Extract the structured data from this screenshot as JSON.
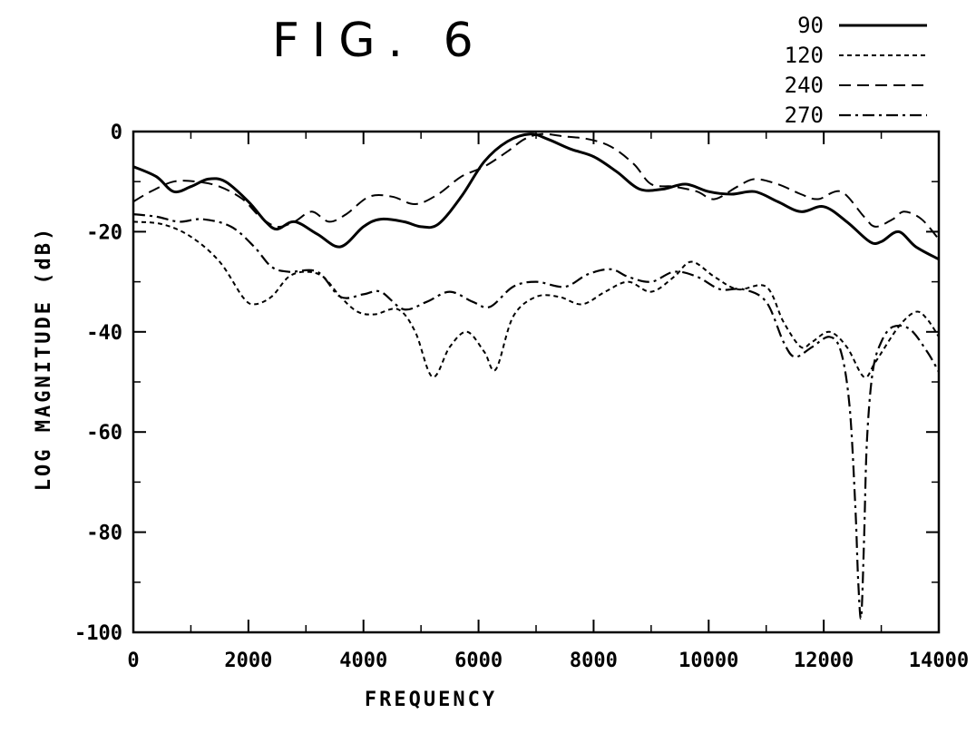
{
  "figure": {
    "title": "FIG. 6"
  },
  "chart_data": {
    "type": "line",
    "title": "FIG. 6",
    "xlabel": "FREQUENCY",
    "ylabel": "LOG MAGNITUDE (dB)",
    "xlim": [
      0,
      14000
    ],
    "ylim": [
      -100,
      0
    ],
    "xticks": [
      0,
      2000,
      4000,
      6000,
      8000,
      10000,
      12000,
      14000
    ],
    "yticks": [
      0,
      -20,
      -40,
      -60,
      -80,
      -100
    ],
    "grid": false,
    "legend_position": "top-right",
    "series": [
      {
        "name": "90",
        "style": "solid",
        "points": [
          [
            0,
            -7
          ],
          [
            400,
            -9
          ],
          [
            700,
            -12
          ],
          [
            1000,
            -11
          ],
          [
            1300,
            -9.5
          ],
          [
            1600,
            -10
          ],
          [
            2000,
            -14
          ],
          [
            2300,
            -18
          ],
          [
            2500,
            -19.5
          ],
          [
            2800,
            -18
          ],
          [
            3200,
            -20.5
          ],
          [
            3600,
            -23
          ],
          [
            4000,
            -19
          ],
          [
            4300,
            -17.5
          ],
          [
            4700,
            -18
          ],
          [
            5000,
            -19
          ],
          [
            5300,
            -18.5
          ],
          [
            5700,
            -13
          ],
          [
            6100,
            -6
          ],
          [
            6500,
            -2
          ],
          [
            6900,
            -0.5
          ],
          [
            7200,
            -1.5
          ],
          [
            7600,
            -3.5
          ],
          [
            8000,
            -5
          ],
          [
            8400,
            -8
          ],
          [
            8800,
            -11.5
          ],
          [
            9200,
            -11.5
          ],
          [
            9600,
            -10.5
          ],
          [
            10000,
            -12
          ],
          [
            10400,
            -12.5
          ],
          [
            10800,
            -12
          ],
          [
            11200,
            -14
          ],
          [
            11600,
            -16
          ],
          [
            12000,
            -15
          ],
          [
            12400,
            -18
          ],
          [
            12800,
            -22
          ],
          [
            13000,
            -22
          ],
          [
            13300,
            -20
          ],
          [
            13600,
            -23
          ],
          [
            14000,
            -25.5
          ]
        ]
      },
      {
        "name": "120",
        "style": "dotted",
        "points": [
          [
            0,
            -18
          ],
          [
            500,
            -18.5
          ],
          [
            1000,
            -21
          ],
          [
            1500,
            -26
          ],
          [
            1900,
            -33
          ],
          [
            2100,
            -34.5
          ],
          [
            2400,
            -33
          ],
          [
            2700,
            -29
          ],
          [
            3000,
            -28
          ],
          [
            3300,
            -29
          ],
          [
            3600,
            -33
          ],
          [
            3900,
            -36
          ],
          [
            4200,
            -36.5
          ],
          [
            4600,
            -35.5
          ],
          [
            4900,
            -40
          ],
          [
            5200,
            -49
          ],
          [
            5500,
            -43
          ],
          [
            5800,
            -40
          ],
          [
            6100,
            -44
          ],
          [
            6300,
            -47.5
          ],
          [
            6600,
            -37
          ],
          [
            7000,
            -33
          ],
          [
            7400,
            -33
          ],
          [
            7800,
            -34.5
          ],
          [
            8200,
            -32
          ],
          [
            8600,
            -30
          ],
          [
            9000,
            -32
          ],
          [
            9400,
            -29
          ],
          [
            9700,
            -26
          ],
          [
            10100,
            -29
          ],
          [
            10500,
            -31.5
          ],
          [
            11000,
            -31
          ],
          [
            11300,
            -38
          ],
          [
            11600,
            -43
          ],
          [
            11800,
            -42
          ],
          [
            12100,
            -40
          ],
          [
            12400,
            -43
          ],
          [
            12700,
            -49
          ],
          [
            12900,
            -46
          ],
          [
            13300,
            -39
          ],
          [
            13600,
            -36
          ],
          [
            13800,
            -37.5
          ],
          [
            14000,
            -41
          ]
        ]
      },
      {
        "name": "240",
        "style": "dashed",
        "points": [
          [
            0,
            -14
          ],
          [
            300,
            -12
          ],
          [
            700,
            -10
          ],
          [
            1100,
            -10
          ],
          [
            1500,
            -11
          ],
          [
            1900,
            -13.5
          ],
          [
            2200,
            -17
          ],
          [
            2500,
            -19
          ],
          [
            2800,
            -18
          ],
          [
            3100,
            -16
          ],
          [
            3400,
            -18
          ],
          [
            3700,
            -16.5
          ],
          [
            4100,
            -13
          ],
          [
            4500,
            -13
          ],
          [
            4900,
            -14.5
          ],
          [
            5300,
            -12.5
          ],
          [
            5700,
            -9
          ],
          [
            6100,
            -7
          ],
          [
            6500,
            -4
          ],
          [
            6800,
            -1.5
          ],
          [
            7100,
            -0.5
          ],
          [
            7500,
            -1
          ],
          [
            7900,
            -1.5
          ],
          [
            8300,
            -3
          ],
          [
            8700,
            -6.5
          ],
          [
            9000,
            -10.5
          ],
          [
            9400,
            -11
          ],
          [
            9800,
            -12
          ],
          [
            10100,
            -13.5
          ],
          [
            10500,
            -11
          ],
          [
            10800,
            -9.5
          ],
          [
            11200,
            -10.5
          ],
          [
            11600,
            -12.5
          ],
          [
            11900,
            -13.5
          ],
          [
            12300,
            -12
          ],
          [
            12700,
            -17
          ],
          [
            12900,
            -19
          ],
          [
            13200,
            -17.5
          ],
          [
            13400,
            -16
          ],
          [
            13700,
            -17.5
          ],
          [
            14000,
            -21.5
          ]
        ]
      },
      {
        "name": "270",
        "style": "dash-dot",
        "points": [
          [
            0,
            -16.5
          ],
          [
            400,
            -17
          ],
          [
            800,
            -18
          ],
          [
            1200,
            -17.5
          ],
          [
            1700,
            -19
          ],
          [
            2100,
            -23
          ],
          [
            2400,
            -27
          ],
          [
            2700,
            -28
          ],
          [
            3200,
            -28
          ],
          [
            3600,
            -33
          ],
          [
            4000,
            -32.5
          ],
          [
            4300,
            -32
          ],
          [
            4700,
            -35.5
          ],
          [
            5100,
            -34
          ],
          [
            5500,
            -32
          ],
          [
            5900,
            -34
          ],
          [
            6200,
            -35
          ],
          [
            6600,
            -31
          ],
          [
            7000,
            -30
          ],
          [
            7500,
            -31
          ],
          [
            7900,
            -28.5
          ],
          [
            8300,
            -27.5
          ],
          [
            8600,
            -29
          ],
          [
            9000,
            -30
          ],
          [
            9400,
            -28
          ],
          [
            9800,
            -29
          ],
          [
            10200,
            -31.5
          ],
          [
            10600,
            -31.5
          ],
          [
            11000,
            -34
          ],
          [
            11300,
            -42
          ],
          [
            11500,
            -45
          ],
          [
            11800,
            -43
          ],
          [
            12100,
            -41
          ],
          [
            12300,
            -44
          ],
          [
            12450,
            -55
          ],
          [
            12550,
            -75
          ],
          [
            12600,
            -90
          ],
          [
            12650,
            -97
          ],
          [
            12700,
            -82
          ],
          [
            12750,
            -62
          ],
          [
            12850,
            -48
          ],
          [
            13000,
            -42
          ],
          [
            13200,
            -39
          ],
          [
            13500,
            -39.5
          ],
          [
            13800,
            -44
          ],
          [
            14000,
            -48
          ]
        ]
      }
    ]
  }
}
